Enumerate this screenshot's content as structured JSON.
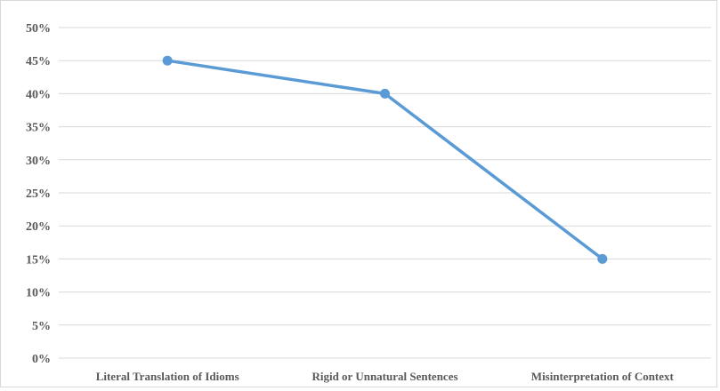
{
  "colors": {
    "series": "#5b9bd5",
    "grid": "#d9d9d9",
    "text": "#595959"
  },
  "chart_data": {
    "type": "line",
    "title": "",
    "xlabel": "",
    "ylabel": "",
    "categories": [
      "Literal Translation of Idioms",
      "Rigid or Unnatural Sentences",
      "Misinterpretation of Context"
    ],
    "series": [
      {
        "values": [
          45,
          40,
          15
        ]
      }
    ],
    "ylim": [
      0,
      50
    ],
    "ytick_step": 5,
    "yticks": [
      "0%",
      "5%",
      "10%",
      "15%",
      "20%",
      "25%",
      "30%",
      "35%",
      "40%",
      "45%",
      "50%"
    ],
    "grid": true,
    "legend": "none",
    "markers": true
  }
}
